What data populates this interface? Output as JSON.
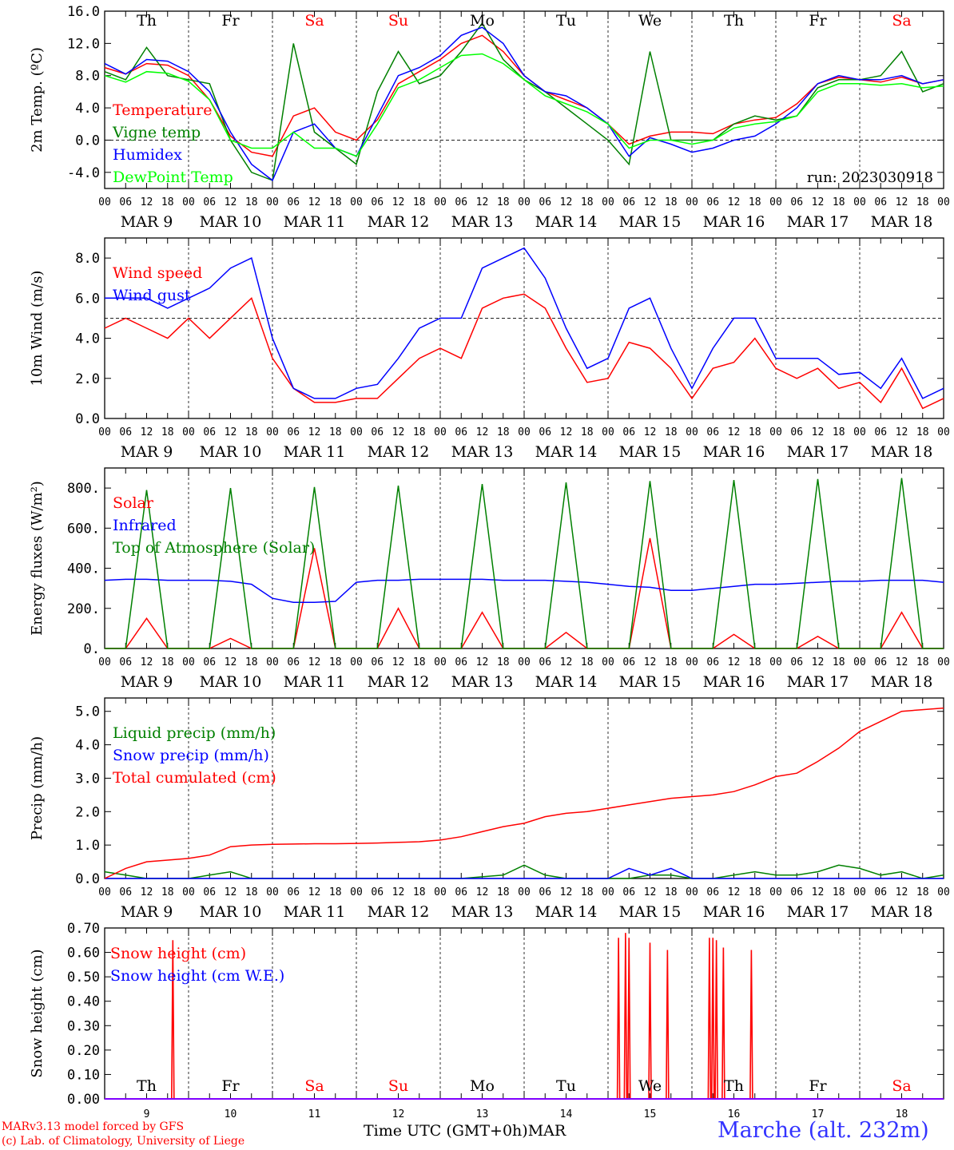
{
  "chart_data": [
    {
      "type": "line",
      "ylabel": "2m Temp. (ºC)",
      "ylim": [
        -6,
        16
      ],
      "yticks": [
        "16.0",
        "12.0",
        "8.0",
        "4.0",
        "0.0",
        "-4.0"
      ],
      "ytick_values": [
        16,
        12,
        8,
        4,
        0,
        -4
      ],
      "ref_line": 0,
      "show_days": true,
      "annotation": "run: 2023030918",
      "x": [
        0,
        6,
        12,
        18,
        24,
        30,
        36,
        42,
        48,
        54,
        60,
        66,
        72,
        78,
        84,
        90,
        96,
        102,
        108,
        114,
        120,
        126,
        132,
        138,
        144,
        150,
        156,
        162,
        168,
        174,
        180,
        186,
        192,
        198,
        204,
        210,
        216,
        222,
        228,
        234,
        240
      ],
      "series": [
        {
          "name": "Temperature",
          "color": "#ff0000",
          "values": [
            9,
            8.2,
            9.5,
            9.3,
            8,
            5,
            0.5,
            -1.5,
            -2,
            3,
            4,
            1,
            0,
            2.5,
            7,
            8.5,
            10,
            12,
            13,
            11,
            8,
            6,
            5,
            4,
            2,
            -0.5,
            0.5,
            1,
            1,
            0.8,
            2,
            2.5,
            2.8,
            4.5,
            7,
            7.8,
            7.5,
            7.2,
            7.8,
            7,
            7.5
          ]
        },
        {
          "name": "Vigne temp",
          "color": "#008000",
          "values": [
            8.5,
            7.5,
            11.5,
            8,
            7.5,
            7,
            0,
            -4,
            -5,
            12,
            1,
            -1,
            -3,
            6,
            11,
            7,
            8,
            11,
            14.5,
            10,
            7.5,
            6,
            4,
            2,
            0,
            -3,
            11,
            0,
            0,
            0,
            2,
            3,
            2.5,
            3,
            6.5,
            7.5,
            7.5,
            8,
            11,
            6,
            7
          ]
        },
        {
          "name": "Humidex",
          "color": "#0000ff",
          "values": [
            9.5,
            8.2,
            10,
            9.8,
            8.5,
            6,
            1,
            -3,
            -5,
            1,
            2,
            -1,
            -2,
            3,
            8,
            9,
            10.5,
            13,
            14,
            12,
            8,
            6,
            5.5,
            4,
            2,
            -2,
            0.3,
            -0.5,
            -1.5,
            -1,
            0,
            0.5,
            2,
            4,
            7,
            8,
            7.5,
            7.5,
            8,
            7,
            7.5
          ]
        },
        {
          "name": "DewPoint Temp",
          "color": "#00ff00",
          "values": [
            8,
            7.2,
            8.5,
            8.3,
            7.3,
            5,
            0,
            -1,
            -1,
            1,
            -1,
            -1,
            -2,
            2,
            6.5,
            7.5,
            9,
            10.5,
            10.7,
            9.5,
            7.5,
            5.5,
            4.5,
            3.5,
            2,
            -1,
            0,
            0,
            -0.5,
            0,
            1.5,
            2,
            2.3,
            3,
            6,
            7,
            7,
            6.8,
            7,
            6.5,
            6.7
          ]
        }
      ]
    },
    {
      "type": "line",
      "ylabel": "10m Wind (m/s)",
      "ylim": [
        0,
        9
      ],
      "yticks": [
        "8.0",
        "6.0",
        "4.0",
        "2.0",
        "0.0"
      ],
      "ytick_values": [
        8,
        6,
        4,
        2,
        0
      ],
      "ref_line": 5,
      "show_days": false,
      "x": [
        0,
        6,
        12,
        18,
        24,
        30,
        36,
        42,
        48,
        54,
        60,
        66,
        72,
        78,
        84,
        90,
        96,
        102,
        108,
        114,
        120,
        126,
        132,
        138,
        144,
        150,
        156,
        162,
        168,
        174,
        180,
        186,
        192,
        198,
        204,
        210,
        216,
        222,
        228,
        234,
        240
      ],
      "series": [
        {
          "name": "Wind speed",
          "color": "#ff0000",
          "values": [
            4.5,
            5,
            4.5,
            4,
            5,
            4,
            5,
            6,
            3,
            1.5,
            0.8,
            0.8,
            1,
            1,
            2,
            3,
            3.5,
            3,
            5.5,
            6,
            6.2,
            5.5,
            3.5,
            1.8,
            2,
            3.8,
            3.5,
            2.5,
            1,
            2.5,
            2.8,
            4,
            2.5,
            2,
            2.5,
            1.5,
            1.8,
            0.8,
            2.5,
            0.5,
            1
          ]
        },
        {
          "name": "Wind gust",
          "color": "#0000ff",
          "values": [
            6,
            6,
            6,
            5.5,
            6,
            6.5,
            7.5,
            8,
            4,
            1.5,
            1,
            1,
            1.5,
            1.7,
            3,
            4.5,
            5,
            5,
            7.5,
            8,
            8.5,
            7,
            4.5,
            2.5,
            3,
            5.5,
            6,
            3.5,
            1.5,
            3.5,
            5,
            5,
            3,
            3,
            3,
            2.2,
            2.3,
            1.5,
            3,
            1,
            1.5
          ]
        }
      ]
    },
    {
      "type": "line",
      "ylabel": "Energy fluxes (W/m²)",
      "ylim": [
        0,
        900
      ],
      "yticks": [
        "800.",
        "600.",
        "400.",
        "200.",
        "0."
      ],
      "ytick_values": [
        800,
        600,
        400,
        200,
        0
      ],
      "show_days": false,
      "x": [
        0,
        6,
        12,
        18,
        24,
        30,
        36,
        42,
        48,
        54,
        60,
        66,
        72,
        78,
        84,
        90,
        96,
        102,
        108,
        114,
        120,
        126,
        132,
        138,
        144,
        150,
        156,
        162,
        168,
        174,
        180,
        186,
        192,
        198,
        204,
        210,
        216,
        222,
        228,
        234,
        240
      ],
      "series": [
        {
          "name": "Solar",
          "color": "#ff0000",
          "values": [
            0,
            0,
            150,
            0,
            0,
            0,
            50,
            0,
            0,
            0,
            500,
            0,
            0,
            0,
            200,
            0,
            0,
            0,
            180,
            0,
            0,
            0,
            80,
            0,
            0,
            0,
            550,
            0,
            0,
            0,
            70,
            0,
            0,
            0,
            60,
            0,
            0,
            0,
            180,
            0,
            0
          ]
        },
        {
          "name": "Infrared",
          "color": "#0000ff",
          "values": [
            340,
            345,
            345,
            340,
            340,
            340,
            335,
            320,
            250,
            230,
            230,
            235,
            330,
            340,
            340,
            345,
            345,
            345,
            345,
            340,
            340,
            340,
            335,
            330,
            320,
            310,
            305,
            290,
            290,
            300,
            310,
            320,
            320,
            325,
            330,
            335,
            335,
            340,
            340,
            340,
            330
          ]
        },
        {
          "name": "Top of Atmosphere (Solar)",
          "color": "#008000",
          "values": [
            0,
            0,
            790,
            0,
            0,
            0,
            800,
            0,
            0,
            0,
            805,
            0,
            0,
            0,
            812,
            0,
            0,
            0,
            820,
            0,
            0,
            0,
            828,
            0,
            0,
            0,
            835,
            0,
            0,
            0,
            840,
            0,
            0,
            0,
            845,
            0,
            0,
            0,
            850,
            0,
            0
          ]
        }
      ]
    },
    {
      "type": "line",
      "ylabel": "Precip (mm/h)",
      "ylim": [
        0,
        5.4
      ],
      "yticks": [
        "5.0",
        "4.0",
        "3.0",
        "2.0",
        "1.0",
        "0.0"
      ],
      "ytick_values": [
        5,
        4,
        3,
        2,
        1,
        0
      ],
      "show_days": false,
      "x": [
        0,
        6,
        12,
        18,
        24,
        30,
        36,
        42,
        48,
        54,
        60,
        66,
        72,
        78,
        84,
        90,
        96,
        102,
        108,
        114,
        120,
        126,
        132,
        138,
        144,
        150,
        156,
        162,
        168,
        174,
        180,
        186,
        192,
        198,
        204,
        210,
        216,
        222,
        228,
        234,
        240
      ],
      "series": [
        {
          "name": "Liquid precip (mm/h)",
          "color": "#008000",
          "values": [
            0.2,
            0.1,
            0,
            0,
            0,
            0.1,
            0.2,
            0,
            0,
            0,
            0,
            0,
            0,
            0,
            0,
            0,
            0,
            0,
            0.05,
            0.1,
            0.4,
            0.1,
            0,
            0,
            0,
            0,
            0.1,
            0.1,
            0,
            0,
            0.1,
            0.2,
            0.1,
            0.1,
            0.2,
            0.4,
            0.3,
            0.1,
            0.2,
            0,
            0.1
          ]
        },
        {
          "name": "Snow precip (mm/h)",
          "color": "#0000ff",
          "values": [
            0,
            0,
            0,
            0,
            0,
            0,
            0,
            0,
            0,
            0,
            0,
            0,
            0,
            0,
            0,
            0,
            0,
            0,
            0,
            0,
            0,
            0,
            0,
            0,
            0,
            0.3,
            0.1,
            0.3,
            0,
            0,
            0,
            0,
            0,
            0,
            0,
            0,
            0,
            0,
            0,
            0,
            0
          ]
        },
        {
          "name": "Total cumulated (cm)",
          "color": "#ff0000",
          "values": [
            0,
            0.3,
            0.5,
            0.55,
            0.6,
            0.7,
            0.95,
            1.0,
            1.02,
            1.03,
            1.04,
            1.04,
            1.05,
            1.06,
            1.08,
            1.1,
            1.15,
            1.25,
            1.4,
            1.55,
            1.65,
            1.85,
            1.95,
            2.0,
            2.1,
            2.2,
            2.3,
            2.4,
            2.45,
            2.5,
            2.6,
            2.8,
            3.05,
            3.15,
            3.5,
            3.9,
            4.4,
            4.7,
            5.0,
            5.05,
            5.1
          ]
        }
      ]
    },
    {
      "type": "line",
      "ylabel": "Snow height (cm)",
      "ylim": [
        0,
        0.7
      ],
      "yticks": [
        "0.70",
        "0.60",
        "0.50",
        "0.40",
        "0.30",
        "0.20",
        "0.10",
        "0.00"
      ],
      "ytick_values": [
        0.7,
        0.6,
        0.5,
        0.4,
        0.3,
        0.2,
        0.1,
        0
      ],
      "show_days": true,
      "day_labels_bottom": true,
      "spikes": [
        [
          19.5,
          0.65
        ],
        [
          147,
          0.66
        ],
        [
          149,
          0.68
        ],
        [
          150,
          0.66
        ],
        [
          156,
          0.64
        ],
        [
          161,
          0.61
        ],
        [
          173,
          0.66
        ],
        [
          174,
          0.66
        ],
        [
          175,
          0.65
        ],
        [
          177,
          0.62
        ],
        [
          185,
          0.61
        ]
      ],
      "series": [
        {
          "name": "Snow height (cm)",
          "color": "#ff0000"
        },
        {
          "name": "Snow height (cm W.E.)",
          "color": "#0000ff"
        }
      ]
    }
  ],
  "x_axis": {
    "hour_labels": [
      "00",
      "06",
      "12",
      "18"
    ],
    "final_label": "00",
    "date_labels": [
      "MAR  9",
      "MAR 10",
      "MAR 11",
      "MAR 12",
      "MAR 13",
      "MAR 14",
      "MAR 15",
      "MAR 16",
      "MAR 17",
      "MAR 18"
    ],
    "day_numbers": [
      "9",
      "10",
      "11",
      "12",
      "13",
      "14",
      "15",
      "16",
      "17",
      "18"
    ],
    "month": "MAR",
    "title": "Time UTC (GMT+0h)"
  },
  "weekdays": [
    {
      "label": "Th",
      "color": "#000000"
    },
    {
      "label": "Fr",
      "color": "#000000"
    },
    {
      "label": "Sa",
      "color": "#ff0000"
    },
    {
      "label": "Su",
      "color": "#ff0000"
    },
    {
      "label": "Mo",
      "color": "#000000"
    },
    {
      "label": "Tu",
      "color": "#000000"
    },
    {
      "label": "We",
      "color": "#000000"
    },
    {
      "label": "Th",
      "color": "#000000"
    },
    {
      "label": "Fr",
      "color": "#000000"
    },
    {
      "label": "Sa",
      "color": "#ff0000"
    }
  ],
  "footer": {
    "model": "MARv3.13 model forced by GFS",
    "credit": "(c) Lab. of Climatology, University of Liege",
    "station": "Marche (alt. 232m)"
  },
  "colors": {
    "credit": "#ff0000",
    "station": "#3333ff",
    "axis": "#000000"
  }
}
